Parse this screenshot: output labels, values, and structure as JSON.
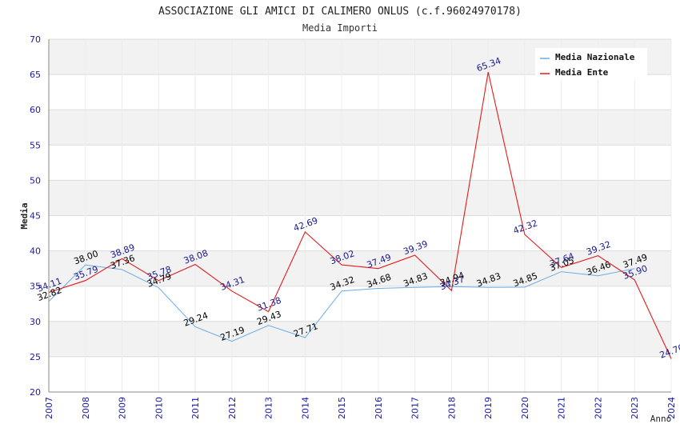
{
  "chart_data": {
    "type": "line",
    "title": "ASSOCIAZIONE GLI AMICI DI CALIMERO ONLUS (c.f.96024970178)",
    "subtitle": "Media Importi",
    "ylabel": "Media",
    "xlabel": "Anno",
    "ylim": [
      20,
      70
    ],
    "yticks": [
      "20",
      "25",
      "30",
      "35",
      "40",
      "45",
      "50",
      "55",
      "60",
      "65",
      "70"
    ],
    "categories": [
      "2007",
      "2008",
      "2009",
      "2010",
      "2011",
      "2012",
      "2013",
      "2014",
      "2015",
      "2016",
      "2017",
      "2018",
      "2019",
      "2020",
      "2021",
      "2022",
      "2023",
      "2024"
    ],
    "grid": true,
    "legend_position": "top-right",
    "series": [
      {
        "name": "Media Nazionale",
        "color": "#6aace6",
        "label_color": "#000000",
        "values": [
          32.82,
          38.0,
          37.36,
          34.79,
          29.24,
          27.19,
          29.43,
          27.71,
          34.32,
          34.68,
          34.83,
          34.94,
          34.83,
          34.85,
          37.05,
          36.46,
          37.49,
          null
        ],
        "labels": [
          "32.82",
          "38.00",
          "37.36",
          "34.79",
          "29.24",
          "27.19",
          "29.43",
          "27.71",
          "34.32",
          "34.68",
          "34.83",
          "34.94",
          "34.83",
          "34.85",
          "37.05",
          "36.46",
          "37.49",
          ""
        ]
      },
      {
        "name": "Media Ente",
        "color": "#e31a1c",
        "label_color": "#1a1a8c",
        "values": [
          34.11,
          35.79,
          38.89,
          35.78,
          38.08,
          34.31,
          31.38,
          42.69,
          38.02,
          37.49,
          39.39,
          34.37,
          65.34,
          42.32,
          37.64,
          39.32,
          35.9,
          24.7
        ],
        "labels": [
          "34.11",
          "35.79",
          "38.89",
          "35.78",
          "38.08",
          "34.31",
          "31.38",
          "42.69",
          "38.02",
          "37.49",
          "39.39",
          "34.37",
          "65.34",
          "42.32",
          "37.64",
          "39.32",
          "35.90",
          "24.70"
        ]
      }
    ]
  },
  "colors": {
    "axis_text": "#1a1aa6",
    "band_alt": "#f2f2f2",
    "gridline": "#dcdcdc"
  }
}
